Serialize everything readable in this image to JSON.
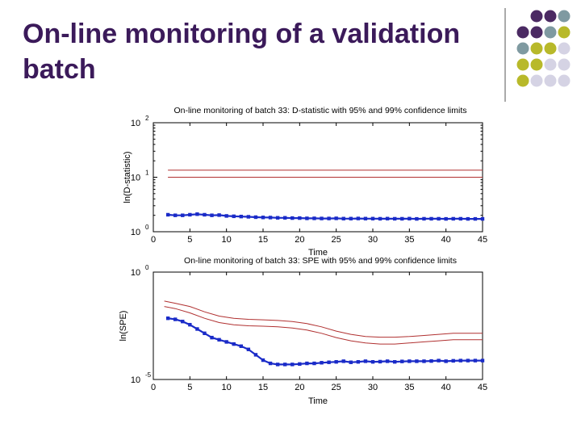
{
  "slide": {
    "title": "On-line monitoring of a validation batch",
    "palette": [
      "#4b2a63",
      "#7f9aa1",
      "#b8b92a",
      "#d5d3e4"
    ]
  },
  "chart_data": [
    {
      "type": "line",
      "title": "On-line monitoring of batch 33: D-statistic with 95% and 99% confidence limits",
      "xlabel": "Time",
      "ylabel": "ln(D-statistic)",
      "xlim": [
        0,
        45
      ],
      "ylim": [
        1,
        100
      ],
      "yscale": "log",
      "xticks": [
        "0",
        "5",
        "10",
        "15",
        "20",
        "25",
        "30",
        "35",
        "40",
        "45"
      ],
      "yticks": [
        {
          "base": "10",
          "exp": "0"
        },
        {
          "base": "10",
          "exp": "1"
        },
        {
          "base": "10",
          "exp": "2"
        }
      ],
      "grid": false,
      "series": [
        {
          "color": "#b03030",
          "marker": "none",
          "x": [
            2,
            45
          ],
          "values": [
            13.5,
            13.5
          ]
        },
        {
          "color": "#b03030",
          "marker": "none",
          "x": [
            2,
            45
          ],
          "values": [
            10.0,
            10.0
          ]
        },
        {
          "color": "#1a2bc8",
          "marker": "square",
          "x": [
            2,
            3,
            4,
            5,
            6,
            7,
            8,
            9,
            10,
            11,
            12,
            13,
            14,
            15,
            16,
            17,
            18,
            19,
            20,
            21,
            22,
            23,
            24,
            25,
            26,
            27,
            28,
            29,
            30,
            31,
            32,
            33,
            34,
            35,
            36,
            37,
            38,
            39,
            40,
            41,
            42,
            43,
            44,
            45
          ],
          "values": [
            2.05,
            2.0,
            2.0,
            2.05,
            2.1,
            2.05,
            2.0,
            2.02,
            1.95,
            1.92,
            1.9,
            1.88,
            1.85,
            1.83,
            1.82,
            1.8,
            1.8,
            1.78,
            1.78,
            1.76,
            1.76,
            1.75,
            1.75,
            1.76,
            1.74,
            1.74,
            1.75,
            1.74,
            1.74,
            1.73,
            1.74,
            1.73,
            1.73,
            1.74,
            1.72,
            1.73,
            1.73,
            1.73,
            1.72,
            1.73,
            1.73,
            1.72,
            1.72,
            1.72
          ]
        }
      ]
    },
    {
      "type": "line",
      "title": "On-line monitoring of batch 33: SPE with 95% and 99% confidence limits",
      "xlabel": "Time",
      "ylabel": "ln(SPE)",
      "xlim": [
        0,
        45
      ],
      "ylim": [
        -5,
        0
      ],
      "yscale": "log",
      "xticks": [
        "0",
        "5",
        "10",
        "15",
        "20",
        "25",
        "30",
        "35",
        "40",
        "45"
      ],
      "yticks": [
        {
          "base": "10",
          "exp": "-5"
        },
        {
          "base": "10",
          "exp": "0"
        }
      ],
      "grid": false,
      "series": [
        {
          "color": "#b03030",
          "marker": "none",
          "x": [
            1.5,
            3,
            5,
            7,
            9,
            11,
            13,
            15,
            17,
            19,
            21,
            23,
            25,
            27,
            29,
            31,
            33,
            35,
            37,
            39,
            41,
            43,
            45
          ],
          "values": [
            -1.35,
            -1.45,
            -1.6,
            -1.85,
            -2.05,
            -2.15,
            -2.2,
            -2.22,
            -2.25,
            -2.3,
            -2.4,
            -2.55,
            -2.75,
            -2.9,
            -3.0,
            -3.03,
            -3.03,
            -3.0,
            -2.95,
            -2.9,
            -2.85,
            -2.85,
            -2.85
          ]
        },
        {
          "color": "#b03030",
          "marker": "none",
          "x": [
            1.5,
            3,
            5,
            7,
            9,
            11,
            13,
            15,
            17,
            19,
            21,
            23,
            25,
            27,
            29,
            31,
            33,
            35,
            37,
            39,
            41,
            43,
            45
          ],
          "values": [
            -1.6,
            -1.7,
            -1.9,
            -2.15,
            -2.35,
            -2.45,
            -2.5,
            -2.52,
            -2.55,
            -2.6,
            -2.7,
            -2.85,
            -3.05,
            -3.2,
            -3.3,
            -3.35,
            -3.35,
            -3.3,
            -3.25,
            -3.2,
            -3.15,
            -3.15,
            -3.15
          ]
        },
        {
          "color": "#1a2bc8",
          "marker": "square",
          "x": [
            2,
            3,
            4,
            5,
            6,
            7,
            8,
            9,
            10,
            11,
            12,
            13,
            14,
            15,
            16,
            17,
            18,
            19,
            20,
            21,
            22,
            23,
            24,
            25,
            26,
            27,
            28,
            29,
            30,
            31,
            32,
            33,
            34,
            35,
            36,
            37,
            38,
            39,
            40,
            41,
            42,
            43,
            44,
            45
          ],
          "values": [
            -2.15,
            -2.2,
            -2.3,
            -2.45,
            -2.65,
            -2.85,
            -3.05,
            -3.15,
            -3.25,
            -3.35,
            -3.45,
            -3.6,
            -3.85,
            -4.1,
            -4.25,
            -4.3,
            -4.3,
            -4.3,
            -4.28,
            -4.25,
            -4.25,
            -4.22,
            -4.2,
            -4.18,
            -4.15,
            -4.2,
            -4.18,
            -4.15,
            -4.18,
            -4.17,
            -4.15,
            -4.18,
            -4.16,
            -4.15,
            -4.15,
            -4.15,
            -4.14,
            -4.12,
            -4.15,
            -4.13,
            -4.12,
            -4.12,
            -4.12,
            -4.12
          ]
        }
      ]
    }
  ]
}
